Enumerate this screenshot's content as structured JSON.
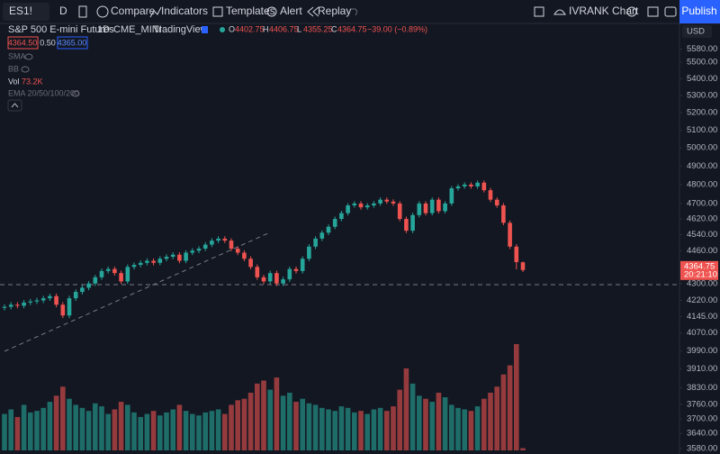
{
  "toolbar": {
    "symbol": "ES1!",
    "interval": "D",
    "compare": "Compare",
    "indicators": "Indicators",
    "templates": "Templates",
    "alert": "Alert",
    "replay": "Replay",
    "layout": "IVRANK Chart",
    "publish": "Publish"
  },
  "legend": {
    "name": "S&P 500 E-mini Futures",
    "interval": "1D",
    "exchange": "CME_MINI",
    "source": "TradingView",
    "ohlc": [
      {
        "label": "O",
        "value": "4402.75"
      },
      {
        "label": "H",
        "value": "4406.75"
      },
      {
        "label": "L",
        "value": "4355.25"
      },
      {
        "label": "C",
        "value": "4364.75"
      }
    ],
    "change": "−39.00 (−0.89%)",
    "bid": "4364.50",
    "spread": "0.50",
    "ask": "4365.00"
  },
  "indicators": {
    "sma": "SMA",
    "bb": "BB",
    "vol": "Vol",
    "vol_value": "73.2K",
    "ema": "EMA 20/50/100/200"
  },
  "chart_data": {
    "type": "candlestick",
    "currency": "USD",
    "log_scale": true,
    "ylim": [
      3572,
      5730
    ],
    "yticks": [
      {
        "value": 5580,
        "label": "5580.00"
      },
      {
        "value": 5500,
        "label": "5500.00"
      },
      {
        "value": 5400,
        "label": "5400.00"
      },
      {
        "value": 5300,
        "label": "5300.00"
      },
      {
        "value": 5200,
        "label": "5200.00"
      },
      {
        "value": 5100,
        "label": "5100.00"
      },
      {
        "value": 5000,
        "label": "5000.00"
      },
      {
        "value": 4900,
        "label": "4900.00"
      },
      {
        "value": 4800,
        "label": "4800.00"
      },
      {
        "value": 4700,
        "label": "4700.00"
      },
      {
        "value": 4620,
        "label": "4620.00"
      },
      {
        "value": 4540,
        "label": "4540.00"
      },
      {
        "value": 4460,
        "label": "4460.00"
      },
      {
        "value": 4300,
        "label": "4300.00"
      },
      {
        "value": 4220,
        "label": "4220.00"
      },
      {
        "value": 4145,
        "label": "4145.00"
      },
      {
        "value": 4070,
        "label": "4070.00"
      },
      {
        "value": 3990,
        "label": "3990.00"
      },
      {
        "value": 3910,
        "label": "3910.00"
      },
      {
        "value": 3830,
        "label": "3830.00"
      },
      {
        "value": 3760,
        "label": "3760.00"
      },
      {
        "value": 3700,
        "label": "3700.00"
      },
      {
        "value": 3640,
        "label": "3640.00"
      },
      {
        "value": 3580,
        "label": "3580.00"
      }
    ],
    "up_color": "#26a69a",
    "down_color": "#ef5350",
    "candles": [
      [
        4185,
        4202,
        4173,
        4190
      ],
      [
        4190,
        4212,
        4178,
        4200
      ],
      [
        4200,
        4212,
        4183,
        4195
      ],
      [
        4195,
        4222,
        4183,
        4210
      ],
      [
        4210,
        4227,
        4198,
        4215
      ],
      [
        4215,
        4232,
        4203,
        4220
      ],
      [
        4220,
        4242,
        4208,
        4230
      ],
      [
        4230,
        4252,
        4218,
        4240
      ],
      [
        4240,
        4252,
        4188,
        4200
      ],
      [
        4200,
        4212,
        4138,
        4150
      ],
      [
        4150,
        4242,
        4138,
        4230
      ],
      [
        4230,
        4272,
        4218,
        4260
      ],
      [
        4260,
        4292,
        4248,
        4280
      ],
      [
        4280,
        4312,
        4268,
        4300
      ],
      [
        4300,
        4342,
        4288,
        4330
      ],
      [
        4330,
        4372,
        4318,
        4360
      ],
      [
        4360,
        4382,
        4348,
        4370
      ],
      [
        4370,
        4382,
        4338,
        4350
      ],
      [
        4350,
        4362,
        4298,
        4310
      ],
      [
        4310,
        4392,
        4298,
        4380
      ],
      [
        4380,
        4402,
        4368,
        4390
      ],
      [
        4390,
        4412,
        4378,
        4400
      ],
      [
        4400,
        4422,
        4388,
        4410
      ],
      [
        4410,
        4422,
        4388,
        4400
      ],
      [
        4400,
        4432,
        4388,
        4420
      ],
      [
        4420,
        4442,
        4408,
        4430
      ],
      [
        4430,
        4452,
        4418,
        4440
      ],
      [
        4440,
        4452,
        4398,
        4410
      ],
      [
        4410,
        4462,
        4398,
        4450
      ],
      [
        4450,
        4472,
        4438,
        4460
      ],
      [
        4460,
        4482,
        4448,
        4470
      ],
      [
        4470,
        4502,
        4458,
        4490
      ],
      [
        4490,
        4522,
        4478,
        4510
      ],
      [
        4510,
        4532,
        4498,
        4520
      ],
      [
        4520,
        4532,
        4498,
        4510
      ],
      [
        4510,
        4522,
        4458,
        4470
      ],
      [
        4470,
        4482,
        4438,
        4450
      ],
      [
        4450,
        4462,
        4408,
        4420
      ],
      [
        4420,
        4432,
        4368,
        4380
      ],
      [
        4380,
        4392,
        4318,
        4330
      ],
      [
        4330,
        4342,
        4298,
        4310
      ],
      [
        4310,
        4362,
        4298,
        4350
      ],
      [
        4350,
        4362,
        4288,
        4300
      ],
      [
        4300,
        4332,
        4288,
        4320
      ],
      [
        4320,
        4382,
        4308,
        4370
      ],
      [
        4370,
        4382,
        4348,
        4360
      ],
      [
        4360,
        4432,
        4348,
        4420
      ],
      [
        4420,
        4492,
        4408,
        4480
      ],
      [
        4480,
        4532,
        4468,
        4520
      ],
      [
        4520,
        4562,
        4508,
        4550
      ],
      [
        4550,
        4592,
        4538,
        4580
      ],
      [
        4580,
        4632,
        4568,
        4620
      ],
      [
        4620,
        4662,
        4608,
        4650
      ],
      [
        4650,
        4702,
        4638,
        4690
      ],
      [
        4690,
        4712,
        4678,
        4700
      ],
      [
        4700,
        4712,
        4668,
        4680
      ],
      [
        4680,
        4702,
        4668,
        4690
      ],
      [
        4690,
        4712,
        4678,
        4700
      ],
      [
        4700,
        4732,
        4688,
        4720
      ],
      [
        4720,
        4732,
        4698,
        4710
      ],
      [
        4710,
        4722,
        4688,
        4700
      ],
      [
        4700,
        4712,
        4608,
        4620
      ],
      [
        4620,
        4632,
        4548,
        4560
      ],
      [
        4560,
        4652,
        4548,
        4640
      ],
      [
        4640,
        4712,
        4628,
        4700
      ],
      [
        4700,
        4712,
        4638,
        4650
      ],
      [
        4650,
        4732,
        4638,
        4720
      ],
      [
        4720,
        4732,
        4648,
        4660
      ],
      [
        4660,
        4712,
        4648,
        4700
      ],
      [
        4700,
        4792,
        4688,
        4780
      ],
      [
        4780,
        4802,
        4768,
        4790
      ],
      [
        4790,
        4812,
        4778,
        4800
      ],
      [
        4800,
        4812,
        4778,
        4790
      ],
      [
        4790,
        4822,
        4778,
        4810
      ],
      [
        4810,
        4822,
        4758,
        4770
      ],
      [
        4770,
        4782,
        4708,
        4720
      ],
      [
        4720,
        4732,
        4678,
        4690
      ],
      [
        4690,
        4702,
        4588,
        4600
      ],
      [
        4600,
        4612,
        4468,
        4480
      ],
      [
        4480,
        4492,
        4368,
        4403.75
      ],
      [
        4402.75,
        4406.75,
        4355.25,
        4364.75
      ]
    ],
    "volume": [
      1200,
      1350,
      1100,
      1500,
      1250,
      1300,
      1400,
      1600,
      1800,
      2100,
      1700,
      1500,
      1400,
      1300,
      1550,
      1450,
      1200,
      1350,
      1600,
      1500,
      1250,
      1100,
      1200,
      1300,
      1150,
      1250,
      1350,
      1500,
      1300,
      1200,
      1150,
      1250,
      1300,
      1350,
      1200,
      1500,
      1650,
      1700,
      1900,
      2200,
      2300,
      2000,
      2400,
      1800,
      1900,
      1600,
      1700,
      1550,
      1500,
      1400,
      1350,
      1300,
      1450,
      1400,
      1250,
      1300,
      1200,
      1350,
      1400,
      1300,
      1450,
      2000,
      2700,
      2200,
      1800,
      1700,
      1600,
      1900,
      1750,
      1500,
      1400,
      1350,
      1300,
      1450,
      1700,
      1900,
      2100,
      2500,
      2800,
      3500,
      73.2
    ],
    "last_price": {
      "value": 4364.75,
      "label": "4364.75"
    },
    "countdown": "20:21:10"
  }
}
